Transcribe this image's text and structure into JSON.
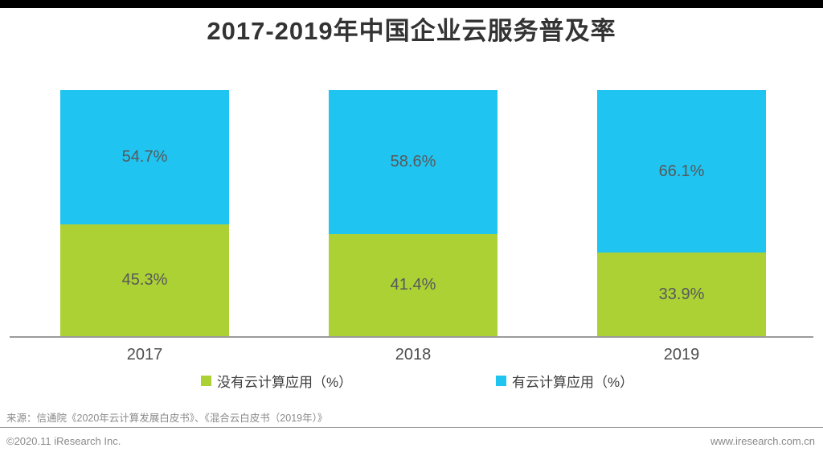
{
  "title": "2017-2019年中国企业云服务普及率",
  "colors": {
    "top_bar": "#000000",
    "series_green": "#abd135",
    "series_blue": "#20c4f0",
    "bar_label": "#58595b",
    "axis_line": "#9b9b9b",
    "footer_text": "#8a8a8a"
  },
  "chart_data": {
    "type": "bar",
    "stacked": true,
    "title": "2017-2019年中国企业云服务普及率",
    "categories": [
      "2017",
      "2018",
      "2019"
    ],
    "series": [
      {
        "name": "没有云计算应用（%）",
        "color": "#abd135",
        "values": [
          45.3,
          41.4,
          33.9
        ]
      },
      {
        "name": "有云计算应用（%）",
        "color": "#20c4f0",
        "values": [
          54.7,
          58.6,
          66.1
        ]
      }
    ],
    "value_suffix": "%",
    "data_labels": "inside-center",
    "xlabel": "",
    "ylabel": "",
    "ylim": [
      0,
      100
    ],
    "grid": false,
    "legend_position": "bottom"
  },
  "footer": {
    "source": "来源：信通院《2020年云计算发展白皮书》、《混合云白皮书（2019年）》",
    "copyright": "©2020.11 iResearch Inc.",
    "website": "www.iresearch.com.cn"
  }
}
